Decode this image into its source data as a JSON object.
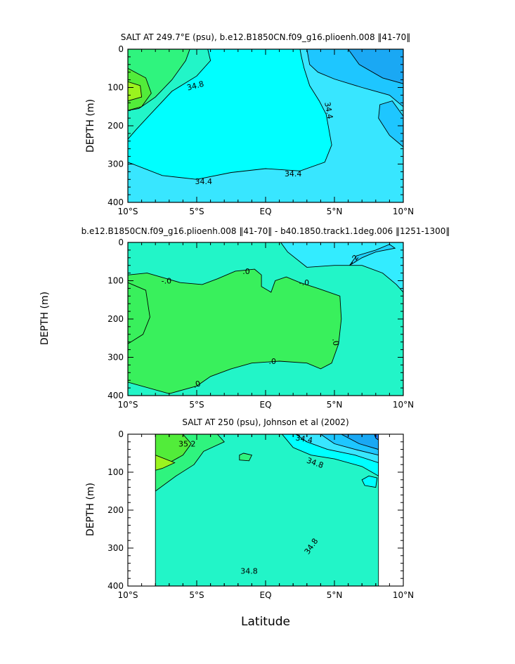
{
  "colors": {
    "salt_34_0": "#1aa8f4",
    "salt_34_2": "#1ec6ff",
    "salt_34_4": "#38e6ff",
    "salt_34_6": "#00ffff",
    "salt_34_8": "#22f5c8",
    "salt_35_0": "#2ff47e",
    "salt_35_2": "#52ec3a",
    "salt_35_4": "#9af41e",
    "diff_neg_0_4": "#1ed2ff",
    "diff_neg_0_2": "#33ecff",
    "diff_zero": "#22f5c8",
    "diff_pos_0_2": "#39f05c",
    "deep_blue": "#1e78f0"
  },
  "chart_data": [
    {
      "type": "contour",
      "title": "SALT AT 249.7°E (psu), b.e12.B1850CN.f09_g16.plioenh.008 ‖41-70‖",
      "xlabel": "",
      "ylabel": "DEPTH (m)",
      "xlim": [
        -10,
        10
      ],
      "ylim": [
        400,
        0
      ],
      "x_ticks": [
        -10,
        -5,
        0,
        5,
        10
      ],
      "x_tick_labels": [
        "10°S",
        "5°S",
        "EQ",
        "5°N",
        "10°N"
      ],
      "y_ticks": [
        0,
        100,
        200,
        300,
        400
      ],
      "y_tick_labels": [
        "0",
        "100",
        "200",
        "300",
        "400"
      ],
      "contour_labels": [
        {
          "text": "34.8",
          "x": -5.1,
          "y": 95,
          "angle": -15
        },
        {
          "text": "34.4",
          "x": 4.6,
          "y": 160,
          "angle": 80
        },
        {
          "text": "34.4",
          "x": -4.5,
          "y": 345,
          "angle": 0
        },
        {
          "text": "34.4",
          "x": 2.0,
          "y": 325,
          "angle": 0
        }
      ],
      "regions": [
        {
          "value": 34.4,
          "points": [
            [
              -10,
              0
            ],
            [
              10,
              0
            ],
            [
              10,
              400
            ],
            [
              -10,
              400
            ]
          ]
        },
        {
          "value": 34.6,
          "points": [
            [
              -10,
              0
            ],
            [
              2.5,
              0
            ],
            [
              2.6,
              20
            ],
            [
              2.8,
              50
            ],
            [
              3.2,
              95
            ],
            [
              3.9,
              135
            ],
            [
              4.4,
              170
            ],
            [
              4.8,
              250
            ],
            [
              4.3,
              295
            ],
            [
              2.5,
              318
            ],
            [
              0,
              312
            ],
            [
              -2.5,
              322
            ],
            [
              -5,
              340
            ],
            [
              -7.5,
              330
            ],
            [
              -10,
              295
            ]
          ]
        },
        {
          "value": 34.2,
          "points": [
            [
              3,
              0
            ],
            [
              10,
              0
            ],
            [
              10,
              150
            ],
            [
              9,
              120
            ],
            [
              7,
              100
            ],
            [
              5,
              78
            ],
            [
              3.8,
              60
            ],
            [
              3.2,
              40
            ]
          ]
        },
        {
          "value": 34.0,
          "points": [
            [
              6,
              0
            ],
            [
              10,
              0
            ],
            [
              10,
              90
            ],
            [
              8.5,
              75
            ],
            [
              6.8,
              40
            ]
          ]
        },
        {
          "value": 34.2,
          "points": [
            [
              10,
              175
            ],
            [
              9.2,
              135
            ],
            [
              8.3,
              145
            ],
            [
              8.2,
              180
            ],
            [
              9,
              225
            ],
            [
              10,
              255
            ]
          ]
        },
        {
          "value": 34.8,
          "points": [
            [
              -10,
              0
            ],
            [
              -4.2,
              0
            ],
            [
              -4,
              30
            ],
            [
              -5,
              70
            ],
            [
              -6.8,
              110
            ],
            [
              -8.5,
              175
            ],
            [
              -9.4,
              210
            ],
            [
              -10,
              235
            ]
          ]
        },
        {
          "value": 35.0,
          "points": [
            [
              -10,
              0
            ],
            [
              -5.5,
              0
            ],
            [
              -5.8,
              30
            ],
            [
              -6.8,
              80
            ],
            [
              -8,
              125
            ],
            [
              -9.2,
              155
            ],
            [
              -10,
              160
            ]
          ]
        },
        {
          "value": 35.2,
          "points": [
            [
              -10,
              50
            ],
            [
              -8.7,
              75
            ],
            [
              -8.3,
              115
            ],
            [
              -9,
              150
            ],
            [
              -10,
              160
            ]
          ]
        },
        {
          "value": 35.4,
          "points": [
            [
              -10,
              85
            ],
            [
              -9.1,
              95
            ],
            [
              -9,
              125
            ],
            [
              -10,
              135
            ]
          ]
        }
      ]
    },
    {
      "type": "contour",
      "title": "b.e12.B1850CN.f09_g16.plioenh.008 ‖41-70‖ - b40.1850.track1.1deg.006 ‖1251-1300‖",
      "xlabel": "",
      "ylabel": "DEPTH (m)",
      "xlim": [
        -10,
        10
      ],
      "ylim": [
        400,
        0
      ],
      "x_ticks": [
        -10,
        -5,
        0,
        5,
        10
      ],
      "x_tick_labels": [
        "10°S",
        "5°S",
        "EQ",
        "5°N",
        "10°N"
      ],
      "y_ticks": [
        0,
        100,
        200,
        300,
        400
      ],
      "y_tick_labels": [
        "0",
        "100",
        "200",
        "300",
        "400"
      ],
      "contour_labels": [
        {
          "text": "-.0",
          "x": -7.2,
          "y": 100,
          "angle": 0
        },
        {
          "text": ".0",
          "x": -1.4,
          "y": 75,
          "angle": 0
        },
        {
          "text": "-.0",
          "x": 2.8,
          "y": 105,
          "angle": 0
        },
        {
          "text": ".0",
          "x": 5.1,
          "y": 260,
          "angle": 80
        },
        {
          "text": ".0",
          "x": 0.5,
          "y": 310,
          "angle": 0
        },
        {
          "text": ".0",
          "x": -5,
          "y": 370,
          "angle": -20
        },
        {
          "text": "-.2",
          "x": 6.4,
          "y": 45,
          "angle": -55
        }
      ],
      "regions": [
        {
          "value": 0.0,
          "points": [
            [
              -10,
              0
            ],
            [
              10,
              0
            ],
            [
              10,
              400
            ],
            [
              -10,
              400
            ]
          ]
        },
        {
          "value": 0.2,
          "points": [
            [
              -10,
              85
            ],
            [
              -8.6,
              80
            ],
            [
              -6.2,
              105
            ],
            [
              -4.6,
              110
            ],
            [
              -3.5,
              95
            ],
            [
              -2.2,
              75
            ],
            [
              -0.8,
              70
            ],
            [
              -0.3,
              85
            ],
            [
              -0.3,
              115
            ],
            [
              0.4,
              130
            ],
            [
              0.7,
              100
            ],
            [
              1.5,
              90
            ],
            [
              2.5,
              105
            ],
            [
              3.8,
              120
            ],
            [
              5.4,
              140
            ],
            [
              5.5,
              200
            ],
            [
              5.3,
              265
            ],
            [
              4.8,
              315
            ],
            [
              4,
              330
            ],
            [
              3,
              315
            ],
            [
              1,
              310
            ],
            [
              -1,
              315
            ],
            [
              -2.5,
              330
            ],
            [
              -4,
              350
            ],
            [
              -5,
              375
            ],
            [
              -7,
              395
            ],
            [
              -10,
              365
            ]
          ]
        },
        {
          "value": -0.2,
          "points": [
            [
              1.1,
              0
            ],
            [
              10,
              0
            ],
            [
              10,
              130
            ],
            [
              9.5,
              110
            ],
            [
              8.5,
              80
            ],
            [
              7,
              60
            ],
            [
              5,
              60
            ],
            [
              3,
              65
            ],
            [
              1.6,
              25
            ]
          ]
        },
        {
          "value": -0.4,
          "points": [
            [
              6.1,
              60
            ],
            [
              7,
              40
            ],
            [
              8,
              25
            ],
            [
              9.4,
              15
            ],
            [
              9,
              5
            ],
            [
              8,
              20
            ],
            [
              6.6,
              35
            ]
          ]
        },
        {
          "value": 0.2,
          "points": [
            [
              -10,
              105
            ],
            [
              -8.7,
              125
            ],
            [
              -8.4,
              195
            ],
            [
              -8.9,
              240
            ],
            [
              -10,
              265
            ]
          ]
        }
      ]
    },
    {
      "type": "contour",
      "title": "SALT AT 250 (psu), Johnson et al (2002)",
      "xlabel": "Latitude",
      "ylabel": "DEPTH (m)",
      "xlim": [
        -10,
        10
      ],
      "ylim": [
        400,
        0
      ],
      "x_ticks": [
        -10,
        -5,
        0,
        5,
        10
      ],
      "x_tick_labels": [
        "10°S",
        "5°S",
        "EQ",
        "5°N",
        "10°N"
      ],
      "y_ticks": [
        0,
        100,
        200,
        300,
        400
      ],
      "y_tick_labels": [
        "0",
        "100",
        "200",
        "300",
        "400"
      ],
      "data_xlim": [
        -8,
        8.2
      ],
      "contour_labels": [
        {
          "text": "35.2",
          "x": -5.7,
          "y": 25,
          "angle": 0
        },
        {
          "text": "34.4",
          "x": 2.8,
          "y": 12,
          "angle": 10
        },
        {
          "text": "34.8",
          "x": 3.6,
          "y": 75,
          "angle": 20
        },
        {
          "text": "34.8",
          "x": 3.3,
          "y": 295,
          "angle": -55
        },
        {
          "text": "34.8",
          "x": -1.2,
          "y": 360,
          "angle": 0
        }
      ],
      "regions": [
        {
          "value": 34.8,
          "points": [
            [
              -8,
              0
            ],
            [
              8.2,
              0
            ],
            [
              8.2,
              400
            ],
            [
              -8,
              400
            ]
          ]
        },
        {
          "value": 35.0,
          "points": [
            [
              -8,
              0
            ],
            [
              -3.5,
              0
            ],
            [
              -3,
              20
            ],
            [
              -4.5,
              45
            ],
            [
              -5.2,
              80
            ],
            [
              -6.5,
              110
            ],
            [
              -8,
              150
            ]
          ]
        },
        {
          "value": 35.2,
          "points": [
            [
              -8,
              0
            ],
            [
              -6,
              0
            ],
            [
              -5.4,
              25
            ],
            [
              -6,
              55
            ],
            [
              -7,
              75
            ],
            [
              -8,
              90
            ]
          ]
        },
        {
          "value": 35.4,
          "points": [
            [
              -8,
              55
            ],
            [
              -6.6,
              75
            ],
            [
              -7.5,
              90
            ],
            [
              -8,
              95
            ]
          ]
        },
        {
          "value": 35.0,
          "points": [
            [
              -1.6,
              50
            ],
            [
              -1,
              55
            ],
            [
              -1.2,
              70
            ],
            [
              -1.9,
              68
            ],
            [
              -1.9,
              55
            ]
          ]
        },
        {
          "value": 34.6,
          "points": [
            [
              1.2,
              0
            ],
            [
              8.2,
              0
            ],
            [
              8.2,
              110
            ],
            [
              7,
              85
            ],
            [
              5,
              65
            ],
            [
              3.3,
              55
            ],
            [
              2,
              35
            ]
          ]
        },
        {
          "value": 34.4,
          "points": [
            [
              2.2,
              0
            ],
            [
              8.2,
              0
            ],
            [
              8.2,
              75
            ],
            [
              6.5,
              55
            ],
            [
              4.5,
              40
            ],
            [
              3,
              20
            ]
          ]
        },
        {
          "value": 34.2,
          "points": [
            [
              4,
              0
            ],
            [
              8.2,
              0
            ],
            [
              8.2,
              55
            ],
            [
              6.5,
              40
            ],
            [
              5,
              25
            ]
          ]
        },
        {
          "value": 34.0,
          "points": [
            [
              5.5,
              0
            ],
            [
              8.2,
              0
            ],
            [
              8.2,
              40
            ],
            [
              6.8,
              25
            ]
          ]
        },
        {
          "value": 33.6,
          "points": [
            [
              7.9,
              0
            ],
            [
              8.2,
              0
            ],
            [
              8.2,
              15
            ],
            [
              8,
              10
            ]
          ]
        },
        {
          "value": 34.6,
          "points": [
            [
              7.5,
              110
            ],
            [
              8.1,
              115
            ],
            [
              8,
              140
            ],
            [
              7.2,
              135
            ],
            [
              7,
              120
            ]
          ]
        }
      ]
    }
  ]
}
